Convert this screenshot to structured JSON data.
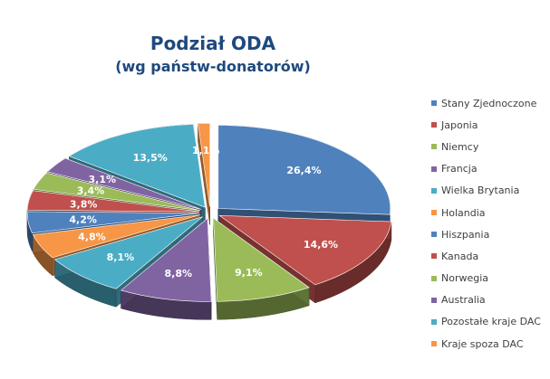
{
  "chart_data": {
    "type": "pie",
    "title": "Podział ODA",
    "subtitle": "(wg państw-donatorów)",
    "categories": [
      "Stany Zjednoczone",
      "Japonia",
      "Niemcy",
      "Francja",
      "Wielka Brytania",
      "Holandia",
      "Hiszpania",
      "Kanada",
      "Norwegia",
      "Australia",
      "Pozostałe kraje DAC",
      "Kraje spoza DAC"
    ],
    "values": [
      26.4,
      14.6,
      9.1,
      8.8,
      8.1,
      4.8,
      4.2,
      3.8,
      3.4,
      3.1,
      13.5,
      1.1
    ],
    "data_labels": [
      "26,4%",
      "14,6%",
      "9,1%",
      "8,8%",
      "8,1%",
      "4,8%",
      "4,2%",
      "3,8%",
      "3,4%",
      "3,1%",
      "13,5%",
      "1,1%"
    ],
    "colors": [
      "#4f81bd",
      "#c0504d",
      "#9bbb59",
      "#8064a2",
      "#4bacc6",
      "#f79646",
      "#4f81bd",
      "#c0504d",
      "#9bbb59",
      "#8064a2",
      "#4bacc6",
      "#f79646"
    ],
    "style": "exploded 3D pie",
    "legend_position": "right"
  }
}
